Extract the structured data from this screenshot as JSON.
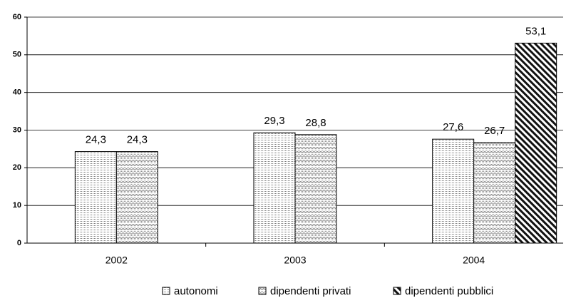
{
  "chart_data": {
    "type": "bar",
    "categories": [
      "2002",
      "2003",
      "2004"
    ],
    "series": [
      {
        "name": "autonomi",
        "color": "#7a7a7a",
        "values": [
          24.3,
          29.3,
          27.6
        ],
        "value_labels": [
          "24,3",
          "29,3",
          "27,6"
        ]
      },
      {
        "name": "dipendenti privati",
        "color": "#8c8c8c",
        "values": [
          24.3,
          28.8,
          26.7
        ],
        "value_labels": [
          "24,3",
          "28,8",
          "26,7"
        ]
      },
      {
        "name": "dipendenti pubblici",
        "color": "#111111",
        "values": [
          null,
          null,
          53.1
        ],
        "value_labels": [
          null,
          null,
          "53,1"
        ]
      }
    ],
    "ylim": [
      0,
      60
    ],
    "yticks": [
      0,
      10,
      20,
      30,
      40,
      50,
      60
    ],
    "grid": true,
    "legend": "bottom"
  }
}
